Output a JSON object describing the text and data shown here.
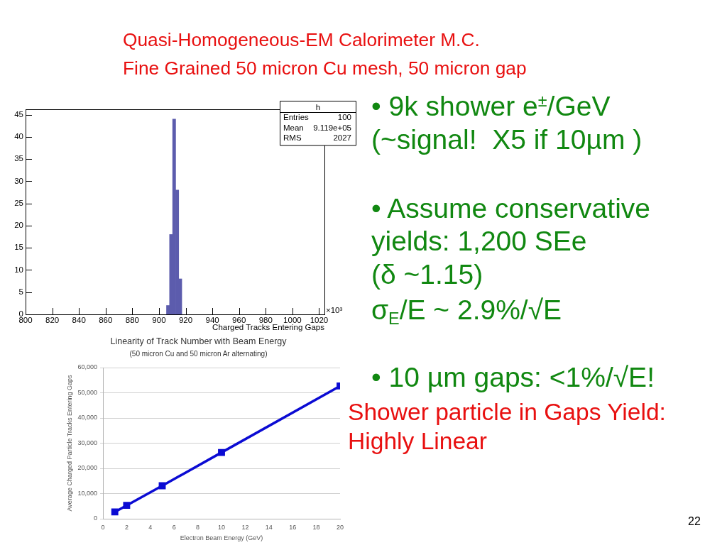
{
  "chart_data": [
    {
      "type": "histogram",
      "xlabel": "Charged Tracks Entering Gaps",
      "bins": [
        905.6,
        907.9,
        910.2,
        912.5,
        914.8,
        917.1
      ],
      "values": [
        2,
        18,
        44,
        28,
        8
      ],
      "color": "#5c5cad",
      "xlim": [
        800,
        1024
      ],
      "ylim": [
        0,
        46.2
      ],
      "xticks": [
        800,
        820,
        840,
        860,
        880,
        900,
        920,
        940,
        960,
        980,
        1000,
        1020
      ],
      "yticks": [
        0,
        5,
        10,
        15,
        20,
        25,
        30,
        35,
        40,
        45
      ],
      "annotations": [
        "h",
        "Entries 100",
        "Mean 9.119e+05",
        "RMS 2027",
        "×10³"
      ]
    },
    {
      "type": "line",
      "title": "Linearity of Track Number with Beam Energy",
      "subtitle": "(50 micron Cu and 50 micron Ar alternating)",
      "xlabel": "Electron Beam Energy (GeV)",
      "ylabel": "Average Charged Particle Tracks Entering Gaps",
      "x": [
        1,
        2,
        5,
        10,
        20
      ],
      "values": [
        2700,
        5300,
        13100,
        26300,
        52700
      ],
      "color": "#0b0bd3",
      "marker": "square",
      "xlim": [
        0,
        20
      ],
      "xticks": [
        0,
        2,
        4,
        6,
        8,
        10,
        12,
        14,
        16,
        18,
        20
      ],
      "ylim": [
        0,
        60000
      ],
      "yticks": [
        0,
        {
          "value": 10000,
          "label": "10,000"
        },
        {
          "value": 20000,
          "label": "20,000"
        },
        {
          "value": 30000,
          "label": "30,000"
        },
        {
          "value": 40000,
          "label": "40,000"
        },
        {
          "value": 50000,
          "label": "50,000"
        },
        {
          "value": 60000,
          "label": "60,000"
        }
      ],
      "grid": "y"
    },
    {
      "type": "other",
      "title": "Quasi-Homogeneous-EM Calorimeter M.C.",
      "subtitle": "Fine Grained 50 micron Cu mesh, 50 micron gap",
      "annotations": [
        "• 9k shower e$^{±}$/GeV",
        "(~signal!  X5 if 10µm )",
        "• Assume conservative",
        "yields: 1,200 SEe",
        "(δ ~1.15)",
        "σ$_{E}$/E ~ 2.9%/√E",
        "• 10 µm gaps: <1%/√E!",
        "Shower particle in Gaps Yield:",
        "Highly Linear",
        "22"
      ]
    }
  ]
}
